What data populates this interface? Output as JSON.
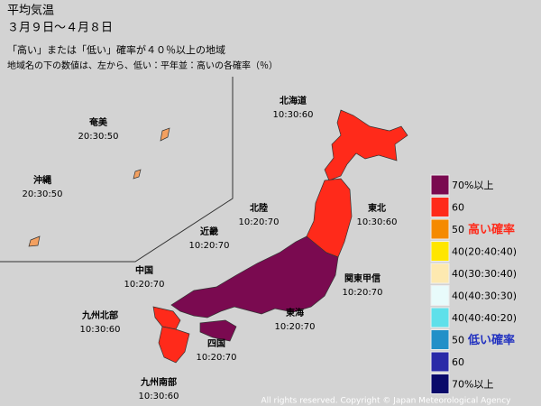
{
  "header": {
    "title": "平均気温",
    "period": "３月９日～４月８日",
    "subtitle": "「高い」または「低い」確率が４０％以上の地域",
    "note": "地域名の下の数値は、左から、低い：平年並：高いの各確率（％）"
  },
  "regions": [
    {
      "name": "北海道",
      "probs": "10:30:60"
    },
    {
      "name": "東北",
      "probs": "10:30:60"
    },
    {
      "name": "北陸",
      "probs": "10:20:70"
    },
    {
      "name": "近畿",
      "probs": "10:20:70"
    },
    {
      "name": "中国",
      "probs": "10:20:70"
    },
    {
      "name": "関東甲信",
      "probs": "10:20:70"
    },
    {
      "name": "東海",
      "probs": "10:20:70"
    },
    {
      "name": "九州北部",
      "probs": "10:30:60"
    },
    {
      "name": "四国",
      "probs": "10:20:70"
    },
    {
      "name": "九州南部",
      "probs": "10:30:60"
    },
    {
      "name": "奄美",
      "probs": "20:30:50"
    },
    {
      "name": "沖縄",
      "probs": "20:30:50"
    }
  ],
  "legend": [
    {
      "color": "#7a0a50",
      "label": "70%以上"
    },
    {
      "color": "#ff2a1a",
      "label": "60"
    },
    {
      "color": "#f58a00",
      "label": "50",
      "note": "高い確率"
    },
    {
      "color": "#ffe600",
      "label": "40(20:40:40)"
    },
    {
      "color": "#fde9b0",
      "label": "40(30:30:40)"
    },
    {
      "color": "#e8fbfb",
      "label": "40(40:30:30)"
    },
    {
      "color": "#5fe0ea",
      "label": "40(40:40:20)"
    },
    {
      "color": "#2290c8",
      "label": "50",
      "note": "低い確率"
    },
    {
      "color": "#2a2aa8",
      "label": "60"
    },
    {
      "color": "#0a0a6a",
      "label": "70%以上"
    }
  ],
  "copyright": "All rights reserved. Copyright © Japan Meteorological Agency"
}
